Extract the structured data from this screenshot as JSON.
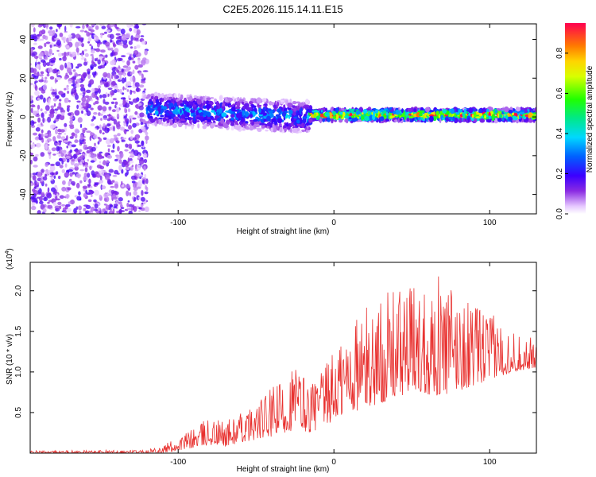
{
  "title": "C2E5.2026.115.14.11.E15",
  "chart_data": [
    {
      "type": "heatmap",
      "name": "spectrogram",
      "xlabel": "Height of straight line (km)",
      "ylabel": "Frequency (Hz)",
      "xlim": [
        -195,
        130
      ],
      "ylim": [
        -50,
        48
      ],
      "x_ticks": [
        -100,
        0,
        100
      ],
      "y_ticks": [
        -40,
        -20,
        0,
        20,
        40
      ],
      "colorbar": {
        "label": "Normalized spectral amplitude",
        "range": [
          0.0,
          0.95
        ],
        "ticks": [
          0.0,
          0.2,
          0.4,
          0.6,
          0.8
        ],
        "tick_labels": [
          "0.0",
          "0.2",
          "0.4",
          "0.6",
          "0.8"
        ]
      },
      "regions": [
        {
          "x_range": [
            -195,
            -120
          ],
          "freq_range": [
            -50,
            48
          ],
          "amplitude": 0.15,
          "description": "broadband noise"
        },
        {
          "x_range": [
            -120,
            -15
          ],
          "freq_center": 2,
          "freq_halfwidth": 8,
          "amplitude": 0.35
        },
        {
          "x_range": [
            -15,
            130
          ],
          "freq_center": 1,
          "freq_halfwidth": 3,
          "amplitude": 0.9
        }
      ]
    },
    {
      "type": "line",
      "name": "snr",
      "xlabel": "Height of straight line (km)",
      "ylabel": "SNR (10 * v/v)",
      "y_multiplier_label": "(x10",
      "y_multiplier_exp": "4",
      "series_color": "#e8312f",
      "xlim": [
        -195,
        130
      ],
      "ylim": [
        0,
        23500
      ],
      "x_ticks": [
        -100,
        0,
        100
      ],
      "y_ticks": [
        5000,
        10000,
        15000,
        20000
      ],
      "y_tick_labels": [
        "0.5",
        "1.0",
        "1.5",
        "2.0"
      ],
      "envelope": {
        "x": [
          -195,
          -125,
          -110,
          -95,
          -80,
          -70,
          -55,
          -40,
          -30,
          -25,
          -15,
          -5,
          0,
          10,
          20,
          35,
          50,
          70,
          85,
          100,
          115,
          130
        ],
        "low": [
          0,
          0,
          0,
          500,
          1000,
          800,
          1500,
          2000,
          2500,
          3000,
          2500,
          3500,
          4000,
          5000,
          5500,
          6500,
          7500,
          7000,
          8000,
          9000,
          10000,
          10500
        ],
        "high": [
          300,
          400,
          1000,
          2500,
          4500,
          4000,
          5500,
          8000,
          10000,
          11500,
          9000,
          11000,
          13000,
          17000,
          18000,
          20000,
          21000,
          22000,
          19000,
          17500,
          15000,
          14000
        ]
      }
    }
  ]
}
